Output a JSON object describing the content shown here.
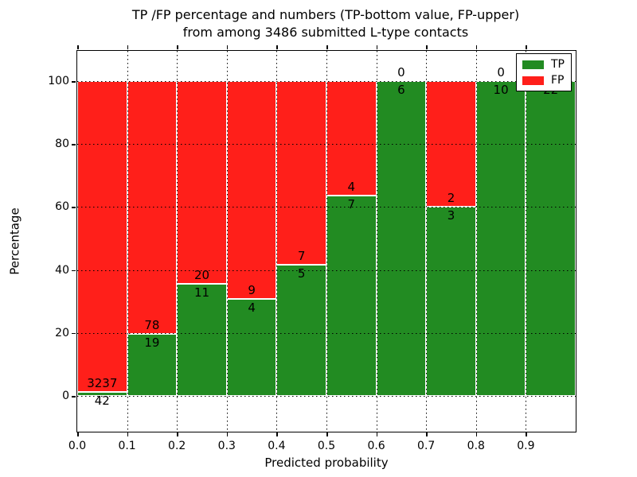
{
  "title": {
    "line1": "TP /FP percentage and numbers (TP-bottom value, FP-upper)",
    "line2": "from among 3486 submitted L-type contacts"
  },
  "chart_data": {
    "type": "bar",
    "stacked": true,
    "description": "Stacked bars normalized to 100%: green TP share (bottom) and red FP share (top) per predicted-probability bin; count labels drawn at the TP/FP boundary (TP below, FP above).",
    "total_contacts": 3486,
    "categories": [
      "0.0-0.1",
      "0.1-0.2",
      "0.2-0.3",
      "0.3-0.4",
      "0.4-0.5",
      "0.5-0.6",
      "0.6-0.7",
      "0.7-0.8",
      "0.8-0.9",
      "0.9-1.0"
    ],
    "series": [
      {
        "name": "TP",
        "color": "#228b22",
        "counts": [
          42,
          19,
          11,
          4,
          5,
          7,
          6,
          3,
          10,
          22
        ]
      },
      {
        "name": "FP",
        "color": "#ff1f1a",
        "counts": [
          3237,
          78,
          20,
          9,
          7,
          4,
          0,
          2,
          0,
          0
        ]
      }
    ],
    "tp_percent": [
      1.3,
      19.6,
      35.5,
      30.8,
      41.7,
      63.6,
      100,
      60,
      100,
      100
    ],
    "xlabel": "Predicted probability",
    "ylabel": "Percentage",
    "x_ticks": [
      "0.0",
      "0.1",
      "0.2",
      "0.3",
      "0.4",
      "0.5",
      "0.6",
      "0.7",
      "0.8",
      "0.9"
    ],
    "y_ticks": [
      0,
      20,
      40,
      60,
      80,
      100
    ],
    "xlim": [
      0.0,
      1.0
    ],
    "ylim": [
      -11.5,
      110
    ],
    "grid": "dotted black, both axes",
    "legend": {
      "position": "upper right",
      "entries": [
        {
          "label": "TP",
          "color": "#228b22"
        },
        {
          "label": "FP",
          "color": "#ff1f1a"
        }
      ]
    }
  }
}
